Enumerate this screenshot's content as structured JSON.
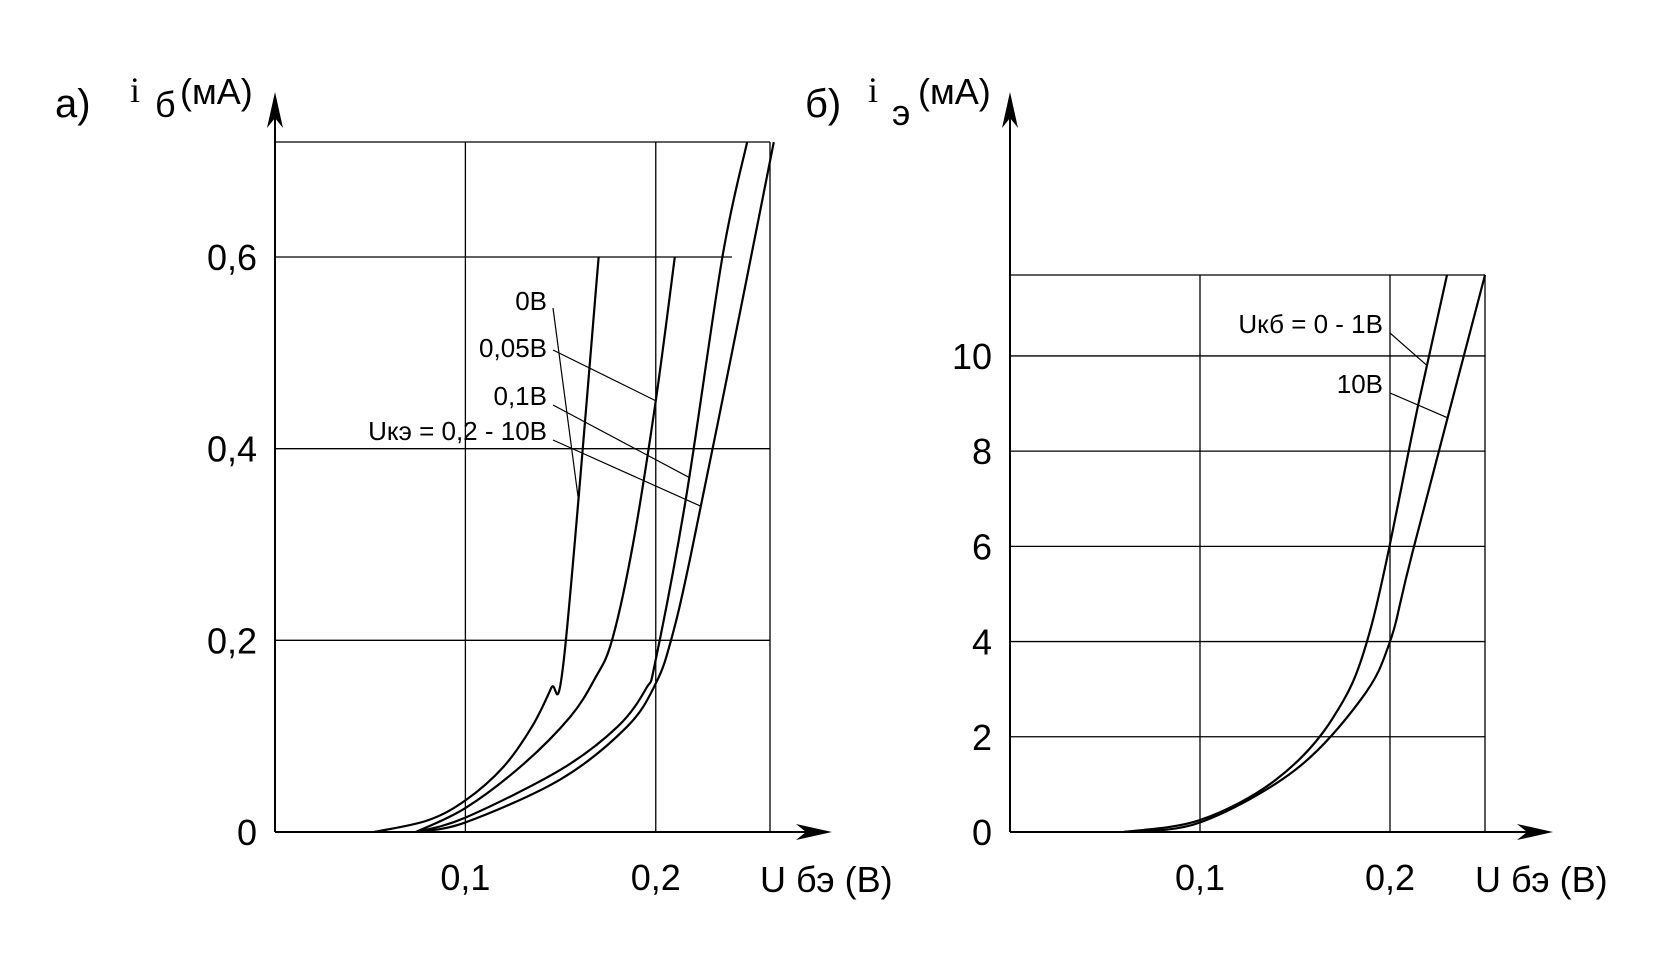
{
  "chart_data": [
    {
      "type": "line",
      "panel_label": "а)",
      "ylabel": {
        "symbol": "i",
        "sub": "б",
        "unit": "(мА)"
      },
      "xlabel": "U бэ (В)",
      "x_ticks": [
        "0,1",
        "0,2"
      ],
      "y_ticks": [
        "0",
        "0,2",
        "0,4",
        "0,6"
      ],
      "xlim": [
        0,
        0.26
      ],
      "ylim": [
        0,
        0.72
      ],
      "grid": true,
      "series": [
        {
          "name": "0В",
          "points": [
            [
              0.052,
              0
            ],
            [
              0.08,
              0.012
            ],
            [
              0.1,
              0.033
            ],
            [
              0.12,
              0.068
            ],
            [
              0.135,
              0.11
            ],
            [
              0.145,
              0.15
            ],
            [
              0.152,
              0.185
            ],
            [
              0.17,
              0.6
            ]
          ]
        },
        {
          "name": "0,05В",
          "points": [
            [
              0.074,
              0
            ],
            [
              0.1,
              0.025
            ],
            [
              0.13,
              0.07
            ],
            [
              0.155,
              0.12
            ],
            [
              0.168,
              0.16
            ],
            [
              0.177,
              0.2
            ],
            [
              0.188,
              0.3
            ],
            [
              0.2,
              0.45
            ],
            [
              0.21,
              0.6
            ]
          ]
        },
        {
          "name": "0,1В",
          "points": [
            [
              0.074,
              0
            ],
            [
              0.1,
              0.015
            ],
            [
              0.15,
              0.065
            ],
            [
              0.18,
              0.11
            ],
            [
              0.195,
              0.15
            ],
            [
              0.2,
              0.18
            ],
            [
              0.216,
              0.35
            ],
            [
              0.235,
              0.6
            ],
            [
              0.248,
              0.72
            ]
          ]
        },
        {
          "name": "Uкэ = 0,2 - 10В",
          "points": [
            [
              0.074,
              0
            ],
            [
              0.1,
              0.01
            ],
            [
              0.15,
              0.055
            ],
            [
              0.185,
              0.11
            ],
            [
              0.2,
              0.155
            ],
            [
              0.208,
              0.2
            ],
            [
              0.218,
              0.285
            ],
            [
              0.24,
              0.5
            ],
            [
              0.262,
              0.72
            ]
          ]
        }
      ]
    },
    {
      "type": "line",
      "panel_label": "б)",
      "ylabel": {
        "symbol": "i",
        "sub": "э",
        "unit": "(мА)"
      },
      "xlabel": "U бэ (В)",
      "x_ticks": [
        "0,1",
        "0,2"
      ],
      "y_ticks": [
        "0",
        "2",
        "4",
        "6",
        "8",
        "10"
      ],
      "xlim": [
        0,
        0.25
      ],
      "ylim": [
        0,
        11.7
      ],
      "grid": true,
      "series": [
        {
          "name": "Uкб = 0 - 1В",
          "points": [
            [
              0.06,
              0
            ],
            [
              0.1,
              0.25
            ],
            [
              0.14,
              1.1
            ],
            [
              0.17,
              2.4
            ],
            [
              0.19,
              4.3
            ],
            [
              0.215,
              9.0
            ],
            [
              0.23,
              11.7
            ]
          ]
        },
        {
          "name": "10В",
          "points": [
            [
              0.06,
              0
            ],
            [
              0.1,
              0.2
            ],
            [
              0.15,
              1.3
            ],
            [
              0.185,
              2.8
            ],
            [
              0.2,
              4.0
            ],
            [
              0.212,
              5.9
            ],
            [
              0.25,
              11.7
            ]
          ]
        }
      ]
    }
  ]
}
